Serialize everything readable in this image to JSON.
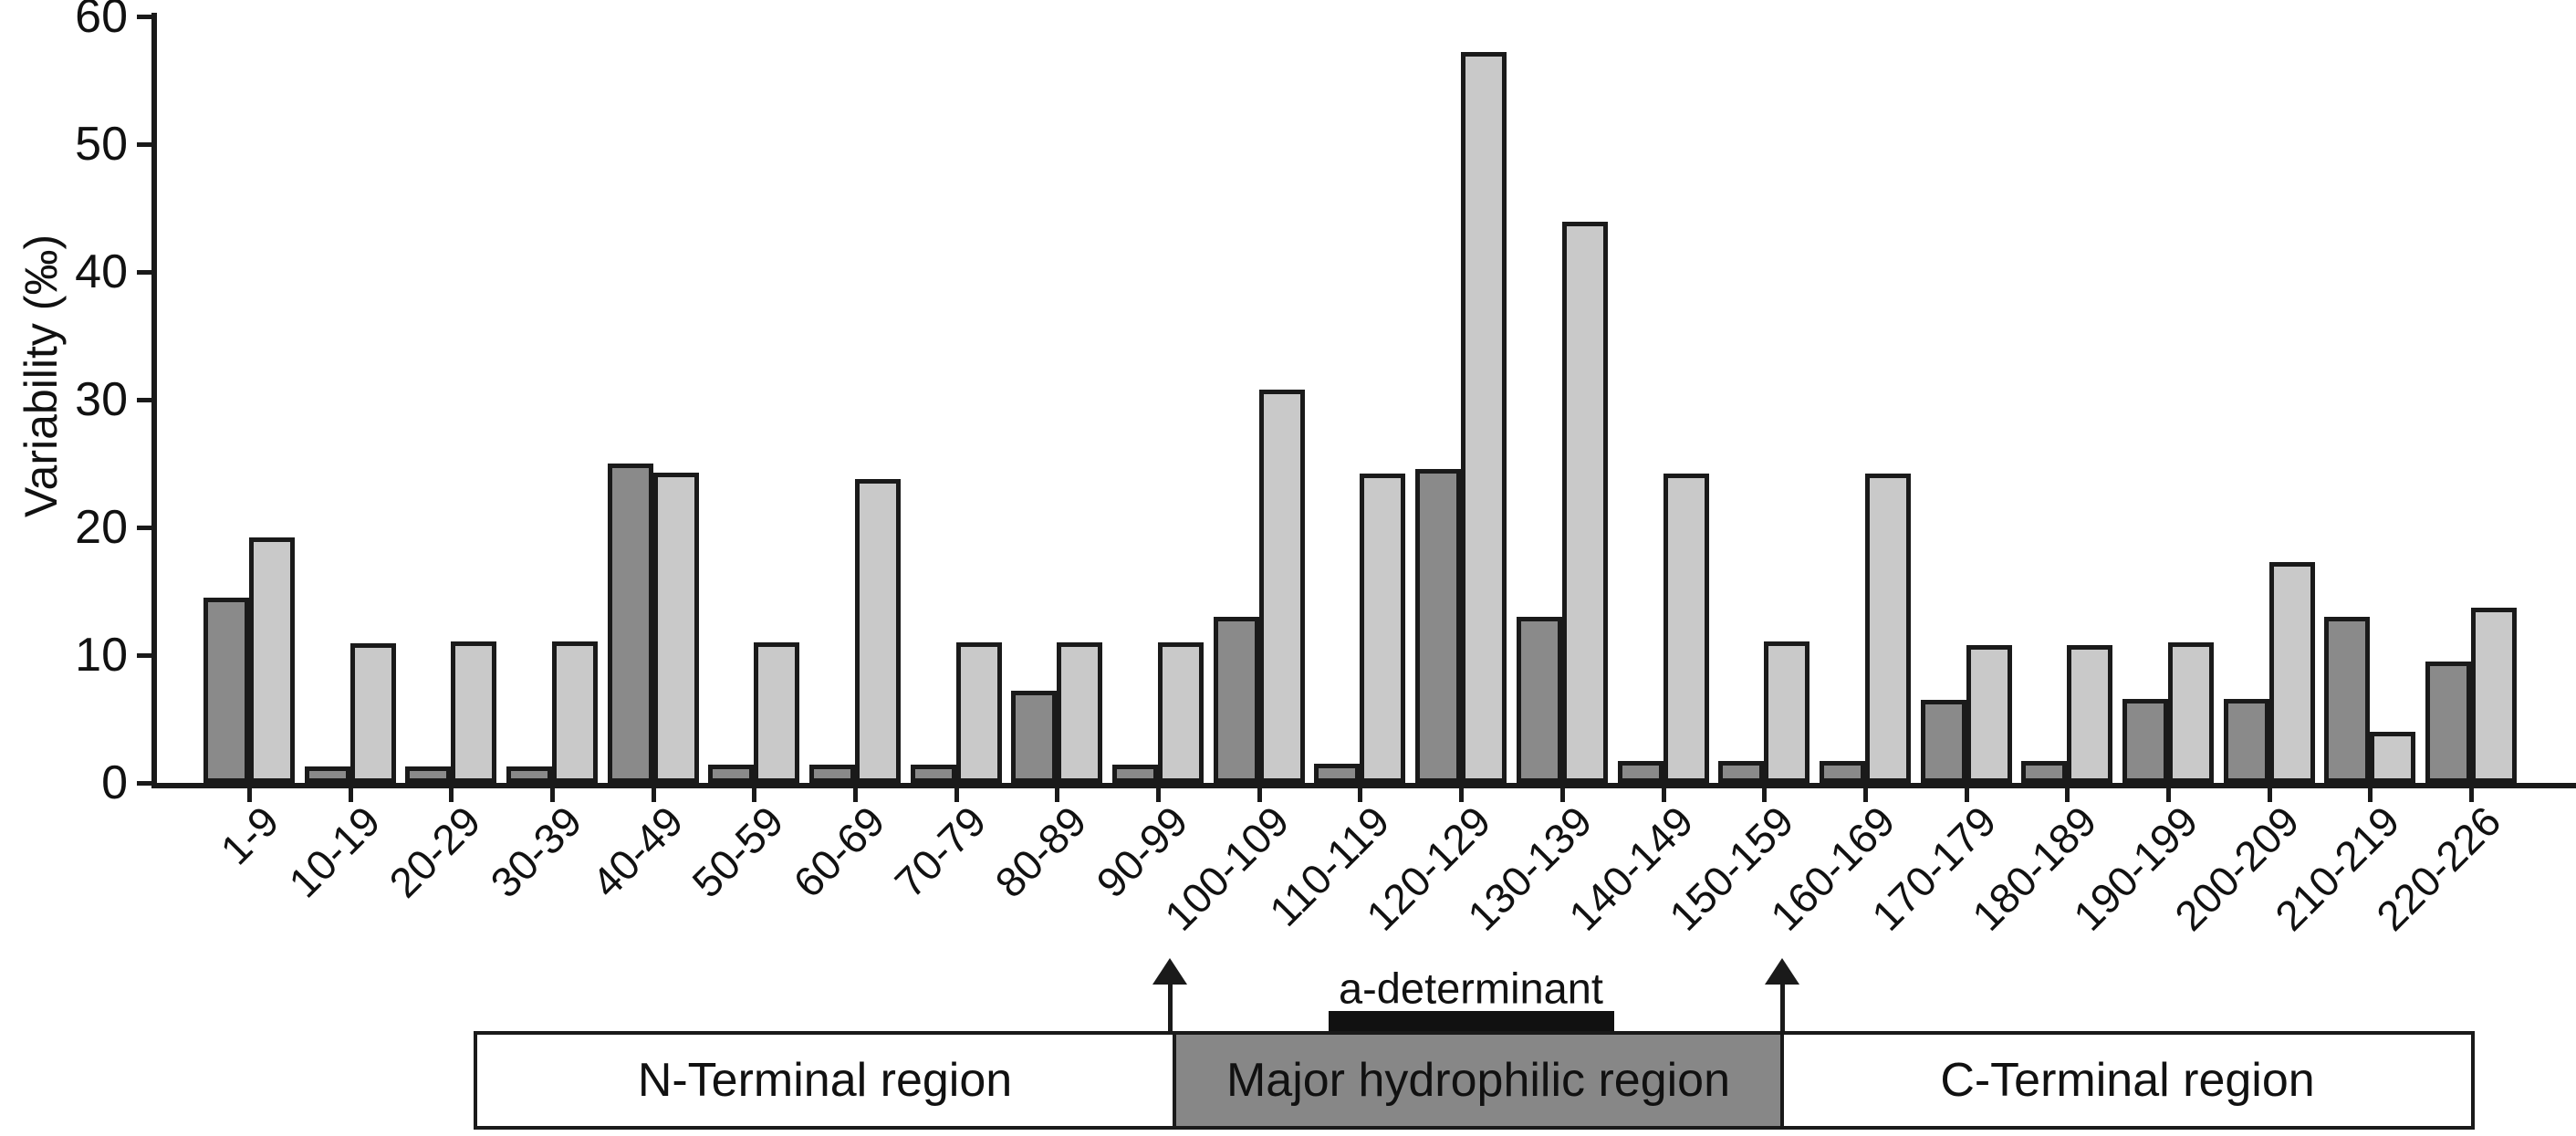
{
  "chart_data": {
    "type": "bar",
    "title": "",
    "xlabel": "",
    "ylabel": "Variability (‰)",
    "ylim": [
      0,
      60
    ],
    "yticks": [
      0,
      10,
      20,
      30,
      40,
      50,
      60
    ],
    "grid": false,
    "legend": "none",
    "categories": [
      "1-9",
      "10-19",
      "20-29",
      "30-39",
      "40-49",
      "50-59",
      "60-69",
      "70-79",
      "80-89",
      "90-99",
      "100-109",
      "110-119",
      "120-129",
      "130-139",
      "140-149",
      "150-159",
      "160-169",
      "170-179",
      "180-189",
      "190-199",
      "200-209",
      "210-219",
      "220-226"
    ],
    "series": [
      {
        "name": "dark-gray",
        "color": "#8a8a8a",
        "values": [
          14.5,
          1.3,
          1.3,
          1.3,
          25.0,
          1.4,
          1.4,
          1.4,
          7.2,
          1.4,
          13.0,
          1.5,
          24.6,
          13.0,
          1.7,
          1.7,
          1.7,
          6.5,
          1.7,
          6.6,
          6.6,
          13.0,
          9.5
        ]
      },
      {
        "name": "light-gray",
        "color": "#c9c9c9",
        "values": [
          19.2,
          10.9,
          11.1,
          11.1,
          24.3,
          11.0,
          23.8,
          11.0,
          11.0,
          11.0,
          30.8,
          24.2,
          57.2,
          43.9,
          24.2,
          11.1,
          24.2,
          10.8,
          10.8,
          11.0,
          17.3,
          4.0,
          13.7
        ]
      }
    ],
    "annotations": {
      "a_determinant_label": "a-determinant",
      "regions": [
        {
          "label": "N-Terminal region",
          "fill": "#ffffff"
        },
        {
          "label": "Major hydrophilic region",
          "fill": "#878787"
        },
        {
          "label": "C-Terminal region",
          "fill": "#ffffff"
        }
      ]
    }
  },
  "colors": {
    "outline": "#1a1a1a",
    "bar_dark": "#8a8a8a",
    "bar_light": "#c9c9c9",
    "region_gray": "#878787",
    "marker_black": "#111111"
  }
}
